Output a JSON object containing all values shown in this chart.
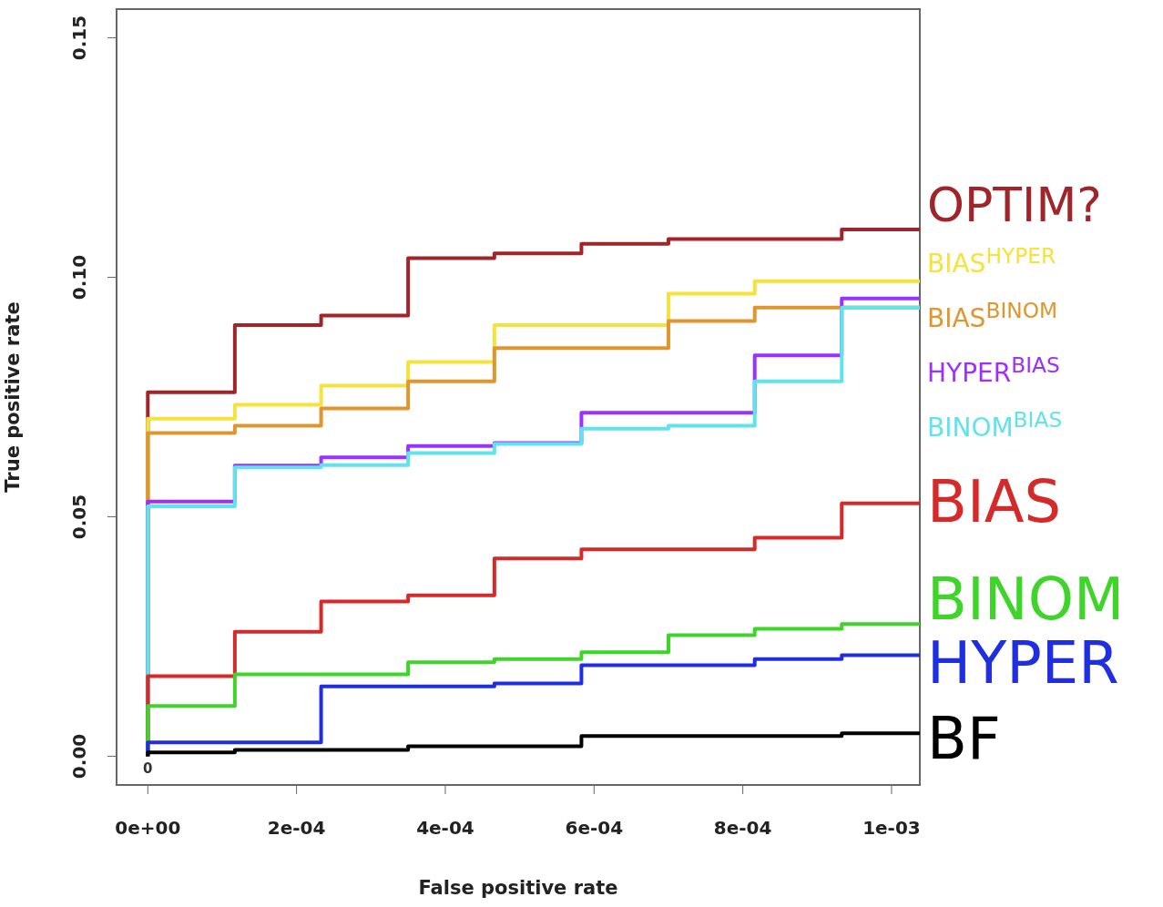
{
  "chart_data": {
    "type": "step",
    "xlabel": "False positive rate",
    "ylabel": "True positive rate",
    "x": [
      0,
      0,
      0.000117,
      0.000233,
      0.00035,
      0.000466,
      0.000583,
      0.0007,
      0.000816,
      0.000933,
      0.001038
    ],
    "xlim": [
      -4.2e-05,
      0.001038
    ],
    "ylim": [
      -0.006,
      0.156
    ],
    "xticks": [
      {
        "value": 0,
        "label": "0e+00"
      },
      {
        "value": 0.0002,
        "label": "2e-04"
      },
      {
        "value": 0.0004,
        "label": "4e-04"
      },
      {
        "value": 0.0006,
        "label": "6e-04"
      },
      {
        "value": 0.0008,
        "label": "8e-04"
      },
      {
        "value": 0.001,
        "label": "1e-03"
      }
    ],
    "yticks": [
      {
        "value": 0,
        "label": "0.00"
      },
      0.05,
      {
        "value": 0.1,
        "label": "0.10"
      },
      0.15
    ],
    "marker": "none",
    "line_style": "solid",
    "grid": false,
    "annotations": [
      {
        "text": "0",
        "x": 0,
        "y": 0
      }
    ],
    "series": [
      {
        "name": "OPTIM?",
        "color": "#a0252a",
        "values": [
          0,
          0.076,
          0.09,
          0.092,
          0.104,
          0.105,
          0.107,
          0.108,
          0.108,
          0.11,
          0.11
        ]
      },
      {
        "name": "BIAS$^{HYPER}$",
        "color": "#f5e23a",
        "values": [
          0,
          0.0705,
          0.0734,
          0.0774,
          0.0823,
          0.09,
          0.09,
          0.0966,
          0.0992,
          0.0992,
          0.0992
        ]
      },
      {
        "name": "BIAS$^{BINOM}$",
        "color": "#e0962e",
        "values": [
          0,
          0.0675,
          0.069,
          0.0726,
          0.0783,
          0.0852,
          0.0852,
          0.0909,
          0.0937,
          0.0937,
          0.0937
        ]
      },
      {
        "name": "HYPER$^{BIAS}$",
        "color": "#9b30ff",
        "values": [
          0,
          0.0532,
          0.0607,
          0.0624,
          0.0648,
          0.0654,
          0.0717,
          0.0717,
          0.0837,
          0.0956,
          0.0956
        ]
      },
      {
        "name": "BINOM$^{BIAS}$",
        "color": "#5fe3ec",
        "values": [
          0,
          0.0522,
          0.0603,
          0.0608,
          0.0633,
          0.0652,
          0.0684,
          0.069,
          0.0783,
          0.0937,
          0.0937
        ]
      },
      {
        "name": "BIAS",
        "color": "#d42a2a",
        "values": [
          0,
          0.0167,
          0.026,
          0.0323,
          0.0336,
          0.0413,
          0.0432,
          0.0432,
          0.0456,
          0.0528,
          0.0528
        ]
      },
      {
        "name": "BINOM",
        "color": "#3fd42a",
        "values": [
          0,
          0.0105,
          0.0171,
          0.0171,
          0.0196,
          0.0203,
          0.0217,
          0.0253,
          0.0266,
          0.0276,
          0.0276
        ]
      },
      {
        "name": "HYPER",
        "color": "#1f2ee0",
        "values": [
          0,
          0.0029,
          0.0029,
          0.0146,
          0.0146,
          0.0152,
          0.019,
          0.019,
          0.0203,
          0.0211,
          0.0211
        ]
      },
      {
        "name": "BF",
        "color": "#000000",
        "values": [
          0,
          0.0008,
          0.0013,
          0.0013,
          0.0021,
          0.0021,
          0.0042,
          0.0042,
          0.0042,
          0.0048,
          0.0048
        ]
      }
    ]
  }
}
